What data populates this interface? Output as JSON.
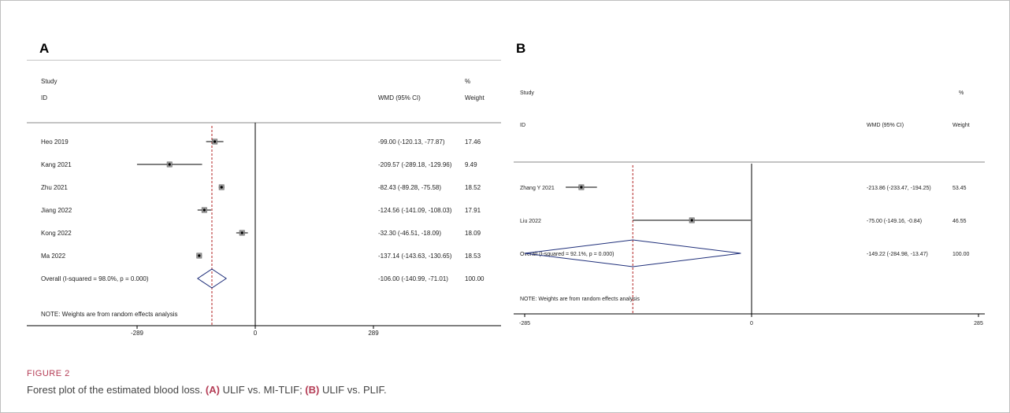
{
  "panels": [
    {
      "letter": "A",
      "header": {
        "study_label": "Study",
        "id_label": "ID",
        "effect_label": "WMD (95% CI)",
        "pct_label": "%",
        "weight_label": "Weight"
      },
      "note": "NOTE: Weights are from random effects analysis",
      "xticks": [
        -289,
        0,
        289
      ],
      "xtick_labels": [
        "-289",
        "0",
        "289"
      ],
      "colors": {
        "diamond": "#1f2f7a",
        "ref_line": "#b22222",
        "line": "#000000"
      }
    },
    {
      "letter": "B",
      "header": {
        "study_label": "Study",
        "id_label": "ID",
        "effect_label": "WMD (95% CI)",
        "pct_label": "%",
        "weight_label": "Weight"
      },
      "note": "NOTE: Weights are from random effects analysis",
      "xticks": [
        -285,
        0,
        285
      ],
      "xtick_labels": [
        "-285",
        "0",
        "285"
      ],
      "colors": {
        "diamond": "#1f2f7a",
        "ref_line": "#b22222",
        "line": "#000000"
      }
    }
  ],
  "chart_data": [
    {
      "type": "forest",
      "xlim": [
        -289,
        289
      ],
      "studies": [
        {
          "id": "Heo 2019",
          "est": -99.0,
          "lo": -120.13,
          "hi": -77.87,
          "ci_text": "-99.00 (-120.13, -77.87)",
          "weight": "17.46"
        },
        {
          "id": "Kang 2021",
          "est": -209.57,
          "lo": -289.18,
          "hi": -129.96,
          "ci_text": "-209.57 (-289.18, -129.96)",
          "weight": "9.49"
        },
        {
          "id": "Zhu 2021",
          "est": -82.43,
          "lo": -89.28,
          "hi": -75.58,
          "ci_text": "-82.43 (-89.28, -75.58)",
          "weight": "18.52"
        },
        {
          "id": "Jiang 2022",
          "est": -124.56,
          "lo": -141.09,
          "hi": -108.03,
          "ci_text": "-124.56 (-141.09, -108.03)",
          "weight": "17.91"
        },
        {
          "id": "Kong 2022",
          "est": -32.3,
          "lo": -46.51,
          "hi": -18.09,
          "ci_text": "-32.30 (-46.51, -18.09)",
          "weight": "18.09"
        },
        {
          "id": "Ma 2022",
          "est": -137.14,
          "lo": -143.63,
          "hi": -130.65,
          "ci_text": "-137.14 (-143.63, -130.65)",
          "weight": "18.53"
        }
      ],
      "overall": {
        "label": "Overall  (I-squared = 98.0%, p = 0.000)",
        "est": -106.0,
        "lo": -140.99,
        "hi": -71.01,
        "ci_text": "-106.00 (-140.99, -71.01)",
        "weight": "100.00"
      }
    },
    {
      "type": "forest",
      "xlim": [
        -285,
        285
      ],
      "studies": [
        {
          "id": "Zhang Y 2021",
          "est": -213.86,
          "lo": -233.47,
          "hi": -194.25,
          "ci_text": "-213.86 (-233.47, -194.25)",
          "weight": "53.45"
        },
        {
          "id": "Liu 2022",
          "est": -75.0,
          "lo": -149.16,
          "hi": -0.84,
          "ci_text": "-75.00 (-149.16, -0.84)",
          "weight": "46.55"
        }
      ],
      "overall": {
        "label": "Overall  (I-squared = 92.1%, p = 0.000)",
        "est": -149.22,
        "lo": -284.98,
        "hi": -13.47,
        "ci_text": "-149.22 (-284.98, -13.47)",
        "weight": "100.00"
      }
    }
  ],
  "caption": {
    "label": "FIGURE 2",
    "text_start": "Forest plot of the estimated blood loss. ",
    "a_tag": "(A)",
    "a_text": " ULIF vs. MI-TLIF; ",
    "b_tag": "(B)",
    "b_text": " ULIF vs. PLIF."
  }
}
